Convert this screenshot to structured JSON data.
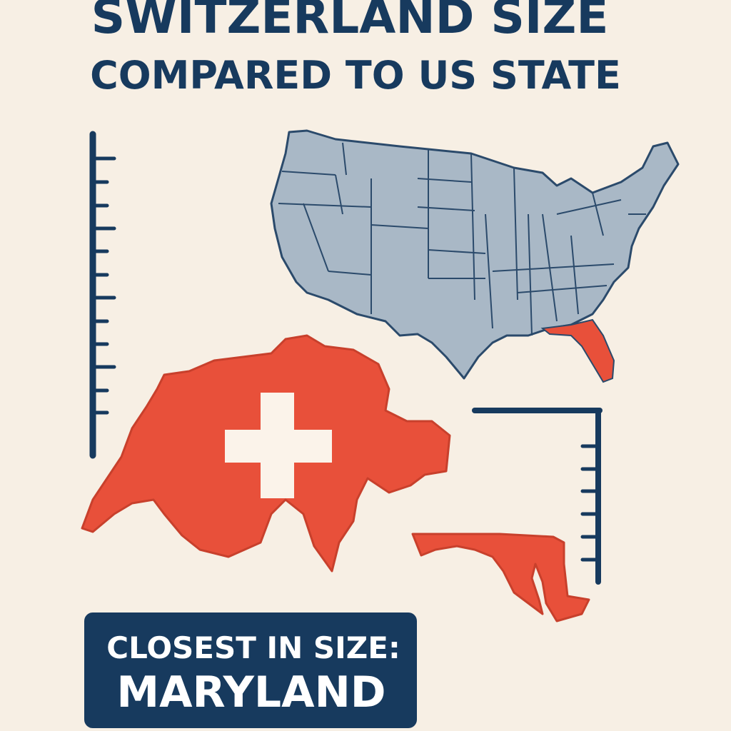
{
  "header": {
    "title_line1": "SWITZERLAND SIZE",
    "title_line2": "COMPARED TO US STATE"
  },
  "callout": {
    "label": "CLOSEST IN SIZE:",
    "state": "MARYLAND"
  }
}
